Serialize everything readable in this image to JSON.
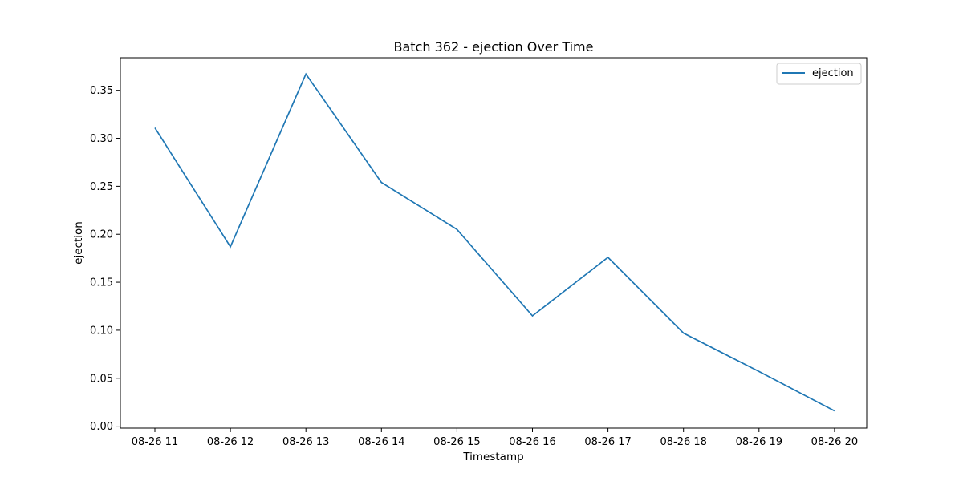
{
  "chart_data": {
    "type": "line",
    "title": "Batch 362 - ejection Over Time",
    "xlabel": "Timestamp",
    "ylabel": "ejection",
    "categories": [
      "08-26 11",
      "08-26 12",
      "08-26 13",
      "08-26 14",
      "08-26 15",
      "08-26 16",
      "08-26 17",
      "08-26 18",
      "08-26 19",
      "08-26 20"
    ],
    "series": [
      {
        "name": "ejection",
        "color": "#1f77b4",
        "values": [
          0.311,
          0.187,
          0.367,
          0.254,
          0.205,
          0.115,
          0.176,
          0.097,
          0.057,
          0.016
        ]
      }
    ],
    "yticks": [
      "0.00",
      "0.05",
      "0.10",
      "0.15",
      "0.20",
      "0.25",
      "0.30",
      "0.35"
    ],
    "ylim": [
      -0.002,
      0.384
    ],
    "grid": false,
    "legend_position": "top-right"
  }
}
